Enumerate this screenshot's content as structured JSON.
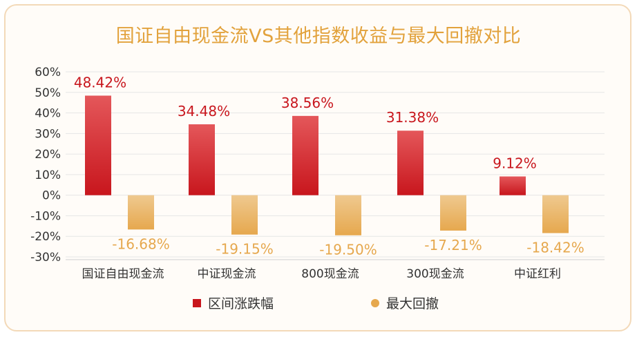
{
  "colors": {
    "gain": "#c8161d",
    "gain_light": "#e4575a",
    "drawdown": "#e6a84e",
    "drawdown_light": "#efc98f",
    "gain_label": "#c8161d",
    "drawdown_label": "#e6a84e",
    "title": "#e2a23c",
    "grid": "#e6e6e6",
    "axis_text": "#333333"
  },
  "chart_data": {
    "type": "bar",
    "title": "国证自由现金流VS其他指数收益与最大回撤对比",
    "categories": [
      "国证自由现金流",
      "中证现金流",
      "800现金流",
      "300现金流",
      "中证红利"
    ],
    "series": [
      {
        "name": "区间涨跌幅",
        "values": [
          48.42,
          34.48,
          38.56,
          31.38,
          9.12
        ],
        "labels": [
          "48.42%",
          "34.48%",
          "38.56%",
          "31.38%",
          "9.12%"
        ]
      },
      {
        "name": "最大回撤",
        "values": [
          -16.68,
          -19.15,
          -19.5,
          -17.21,
          -18.42
        ],
        "labels": [
          "-16.68%",
          "-19.15%",
          "-19.50%",
          "-17.21%",
          "-18.42%"
        ]
      }
    ],
    "y_ticks": [
      "60%",
      "50%",
      "40%",
      "30%",
      "20%",
      "10%",
      "0%",
      "-10%",
      "-20%",
      "-30%"
    ],
    "ylim": [
      -30,
      60
    ],
    "grid": true,
    "legend_position": "bottom"
  }
}
